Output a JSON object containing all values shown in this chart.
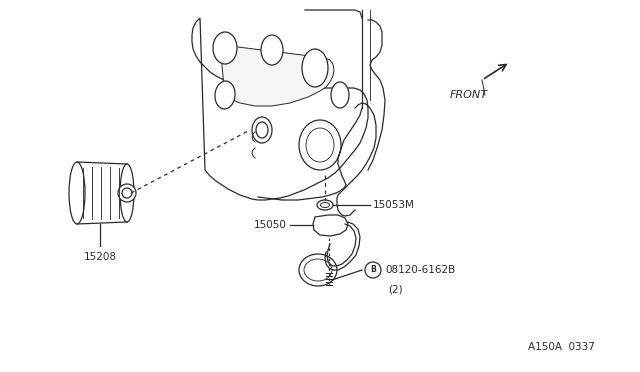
{
  "bg_color": "#ffffff",
  "line_color": "#2a2a2a",
  "fig_width": 6.4,
  "fig_height": 3.72,
  "dpi": 100,
  "diagram_ref": "A150A  0337",
  "label_15208": "15208",
  "label_15050": "15050",
  "label_15053M": "15053M",
  "label_bolt": "08120-6162B",
  "label_bolt2": "(2)",
  "label_front": "FRONT"
}
